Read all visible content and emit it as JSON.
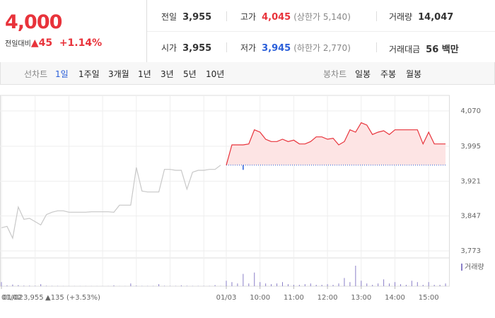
{
  "header": {
    "price": "4,000",
    "change_label": "전일대비",
    "change": "▲45",
    "change_pct": "+1.14%",
    "stats": [
      {
        "label": "전일",
        "value": "3,955"
      },
      {
        "label": "고가",
        "value": "4,045",
        "note": "(상한가 5,140)"
      },
      {
        "label": "거래량",
        "value": "14,047"
      },
      {
        "label": "시가",
        "value": "3,955"
      },
      {
        "label": "저가",
        "value": "3,945",
        "note": "(하한가 2,770)"
      },
      {
        "label": "거래대금",
        "value": "56 백만"
      }
    ]
  },
  "tabs": {
    "line_label": "선차트",
    "line": [
      "1일",
      "1주일",
      "3개월",
      "1년",
      "3년",
      "5년",
      "10년"
    ],
    "active": 0,
    "candle_label": "봉차트",
    "candle": [
      "일봉",
      "주봉",
      "월봉"
    ]
  },
  "chart_data": {
    "type": "line",
    "categories": [
      "01/02",
      null,
      null,
      null,
      null,
      null,
      null,
      null,
      null,
      null,
      null,
      null,
      null,
      null,
      null,
      null,
      null,
      null,
      null,
      null,
      null,
      null,
      null,
      null,
      null,
      null,
      null,
      null,
      null,
      null,
      null,
      null,
      null,
      null,
      null,
      null,
      null,
      null,
      null,
      null,
      "01/03",
      null,
      null,
      null,
      null,
      null,
      "10:00",
      null,
      null,
      null,
      null,
      null,
      "11:00",
      null,
      null,
      null,
      null,
      null,
      "12:00",
      null,
      null,
      null,
      null,
      null,
      "13:00",
      null,
      null,
      null,
      null,
      null,
      "14:00",
      null,
      null,
      null,
      null,
      null,
      "15:00",
      null,
      null,
      null
    ],
    "series": [
      {
        "color": "#c8c8c8",
        "values": [
          3822,
          3825,
          3800,
          3866,
          3840,
          3842,
          3835,
          3828,
          3850,
          3855,
          3858,
          3858,
          3855,
          3855,
          3855,
          3855,
          3856,
          3856,
          3856,
          3856,
          3855,
          3870,
          3870,
          3870,
          3950,
          3900,
          3898,
          3898,
          3898,
          3946,
          3946,
          3944,
          3944,
          3904,
          3940,
          3944,
          3944,
          3946,
          3946,
          3955,
          null,
          null,
          null,
          null,
          null,
          null,
          null,
          null,
          null,
          null,
          null,
          null,
          null,
          null,
          null,
          null,
          null,
          null,
          null,
          null,
          null,
          null,
          null,
          null,
          null,
          null,
          null,
          null,
          null,
          null,
          null,
          null,
          null,
          null,
          null,
          null,
          null,
          null,
          null,
          null
        ]
      },
      {
        "color": "#e8333b",
        "values": [
          null,
          null,
          null,
          null,
          null,
          null,
          null,
          null,
          null,
          null,
          null,
          null,
          null,
          null,
          null,
          null,
          null,
          null,
          null,
          null,
          null,
          null,
          null,
          null,
          null,
          null,
          null,
          null,
          null,
          null,
          null,
          null,
          null,
          null,
          null,
          null,
          null,
          null,
          null,
          null,
          3955,
          3998,
          3998,
          3998,
          4000,
          4030,
          4025,
          4010,
          4005,
          4005,
          4010,
          4005,
          4008,
          4000,
          4000,
          4005,
          4015,
          4015,
          4010,
          4012,
          3998,
          4005,
          4030,
          4025,
          4045,
          4040,
          4020,
          4025,
          4028,
          4020,
          4030,
          4030,
          4030,
          4030,
          4030,
          4000,
          4025,
          4000,
          4000,
          4000
        ]
      }
    ],
    "low": 3945,
    "low_color": "#2b5fd9",
    "volume": {
      "name": "거래량",
      "color": "#8a7fc8",
      "values": [
        300,
        60,
        120,
        80,
        40,
        40,
        30,
        150,
        30,
        20,
        20,
        10,
        10,
        10,
        10,
        10,
        10,
        10,
        10,
        10,
        60,
        10,
        10,
        200,
        40,
        20,
        20,
        20,
        150,
        30,
        20,
        20,
        60,
        30,
        20,
        20,
        20,
        20,
        80,
        20,
        400,
        300,
        200,
        900,
        200,
        1000,
        300,
        200,
        150,
        200,
        300,
        150,
        100,
        100,
        150,
        200,
        100,
        100,
        150,
        100,
        200,
        600,
        300,
        1500,
        400,
        200,
        100,
        200,
        500,
        200,
        300,
        150,
        100,
        400,
        300,
        100,
        300,
        100,
        100,
        200
      ]
    },
    "ylim": [
      3758,
      4103
    ],
    "yticks": [
      {
        "value": 4070,
        "label": "4,070"
      },
      {
        "value": 3995,
        "label": "3,995"
      },
      {
        "value": 3921,
        "label": "3,921"
      },
      {
        "value": 3847,
        "label": "3,847"
      },
      {
        "value": 3773,
        "label": "3,773"
      }
    ],
    "grid": true,
    "footer": {
      "date": "01/02",
      "price": "3,955",
      "change": "▲135",
      "pct": "(+3.53%)"
    }
  }
}
